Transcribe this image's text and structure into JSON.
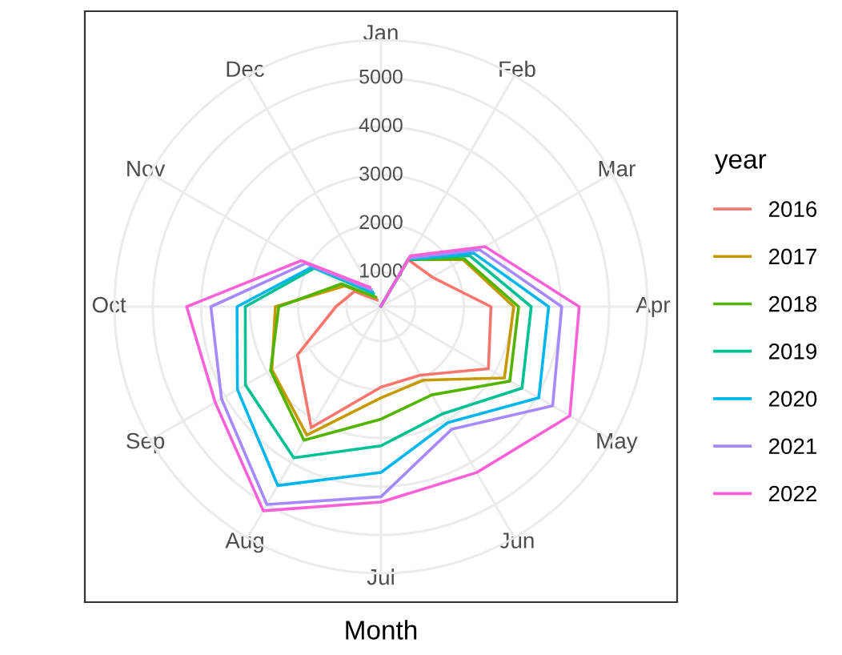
{
  "chart_data": {
    "type": "radar",
    "xlabel": "Month",
    "legend_title": "year",
    "legend": "right",
    "grid": true,
    "categories": [
      "Jan",
      "Feb",
      "Mar",
      "Apr",
      "May",
      "Jun",
      "Jul",
      "Aug",
      "Sep",
      "Oct",
      "Nov",
      "Dec"
    ],
    "ylim": [
      290,
      5790
    ],
    "yticks": [
      1000,
      2000,
      3000,
      4000,
      5000
    ],
    "series": [
      {
        "name": "2016",
        "color": "#f8766d",
        "values": [
          300,
          1410,
          1510,
          2560,
          2850,
          1920,
          1950,
          3170,
          2280,
          1220,
          920,
          450
        ]
      },
      {
        "name": "2017",
        "color": "#c49a00",
        "values": [
          300,
          1410,
          2240,
          3030,
          3230,
          2040,
          2170,
          3350,
          2890,
          2470,
          1150,
          500
        ]
      },
      {
        "name": "2018",
        "color": "#53b400",
        "values": [
          300,
          1410,
          2270,
          3130,
          3360,
          2390,
          2610,
          3470,
          2920,
          2400,
          1230,
          520
        ]
      },
      {
        "name": "2019",
        "color": "#00c094",
        "values": [
          300,
          1410,
          2400,
          3390,
          3650,
          2840,
          3160,
          3890,
          3520,
          3090,
          1880,
          600
        ]
      },
      {
        "name": "2020",
        "color": "#00b6eb",
        "values": [
          300,
          1430,
          2500,
          3750,
          4050,
          3050,
          3710,
          4550,
          3710,
          3260,
          1930,
          650
        ]
      },
      {
        "name": "2021",
        "color": "#a58aff",
        "values": [
          300,
          1450,
          2640,
          4020,
          4380,
          3210,
          4210,
          5000,
          4090,
          3800,
          2080,
          700
        ]
      },
      {
        "name": "2022",
        "color": "#fb61d7",
        "values": [
          300,
          1500,
          2770,
          4380,
          4790,
          4240,
          4320,
          5150,
          4240,
          4300,
          2190,
          750
        ]
      }
    ]
  }
}
